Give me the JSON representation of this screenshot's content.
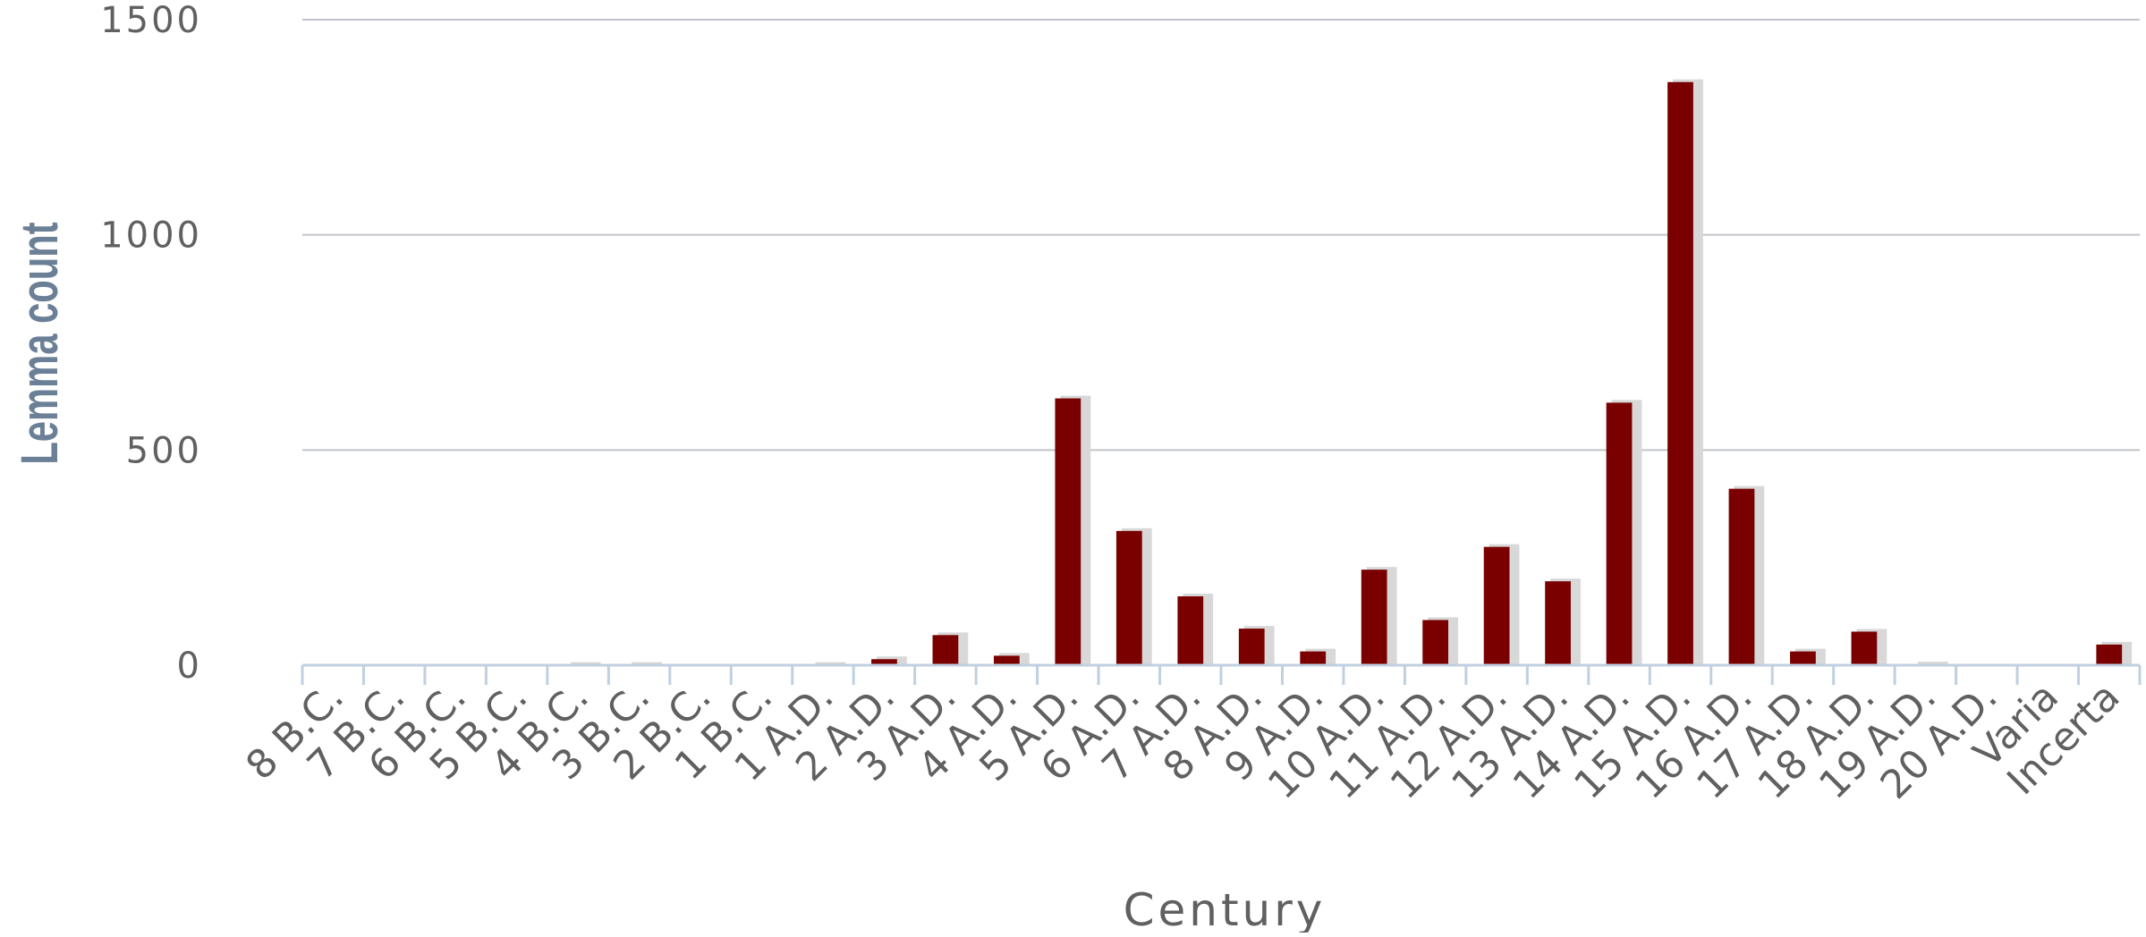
{
  "chart_data": {
    "type": "bar",
    "title": "",
    "xlabel": "Century",
    "ylabel": "Lemma count",
    "ylim": [
      0,
      1500
    ],
    "yticks": [
      "0",
      "500",
      "1000",
      "1500"
    ],
    "grid": true,
    "legend": "none",
    "colors": {
      "bar": "#7a0000",
      "axis": "#c0d0e0",
      "grid": "#c0c4c9"
    },
    "categories": [
      "8 B.C.",
      "7 B.C.",
      "6 B.C.",
      "5 B.C.",
      "4 B.C.",
      "3 B.C.",
      "2 B.C.",
      "1 B.C.",
      "1 A.D.",
      "2 A.D.",
      "3 A.D.",
      "4 A.D.",
      "5 A.D.",
      "6 A.D.",
      "7 A.D.",
      "8 A.D.",
      "9 A.D.",
      "10 A.D.",
      "11 A.D.",
      "12 A.D.",
      "13 A.D.",
      "14 A.D.",
      "15 A.D.",
      "16 A.D.",
      "17 A.D.",
      "18 A.D.",
      "19 A.D.",
      "20 A.D.",
      "Varia",
      "Incerta"
    ],
    "values": [
      0,
      0,
      0,
      0,
      1,
      1,
      0,
      0,
      1,
      14,
      70,
      22,
      620,
      312,
      160,
      85,
      32,
      222,
      105,
      275,
      195,
      610,
      1355,
      410,
      32,
      78,
      2,
      0,
      0,
      48
    ]
  }
}
